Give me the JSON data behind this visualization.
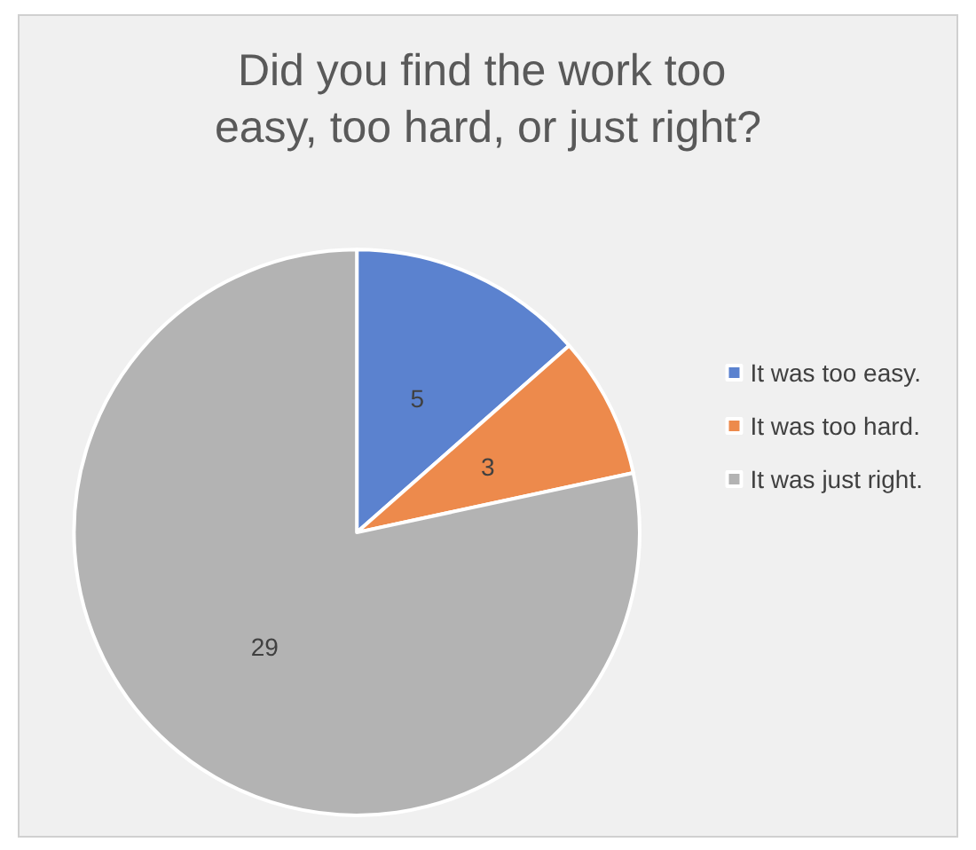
{
  "chart_data": {
    "type": "pie",
    "title": "Did you find the work too easy, too hard, or just right?",
    "categories": [
      "It was too easy.",
      "It was too hard.",
      "It was just right."
    ],
    "values": [
      5,
      3,
      29
    ],
    "colors": [
      "#5b82cf",
      "#ed8a4c",
      "#b3b3b3"
    ],
    "data_labels": true,
    "legend": "right"
  }
}
